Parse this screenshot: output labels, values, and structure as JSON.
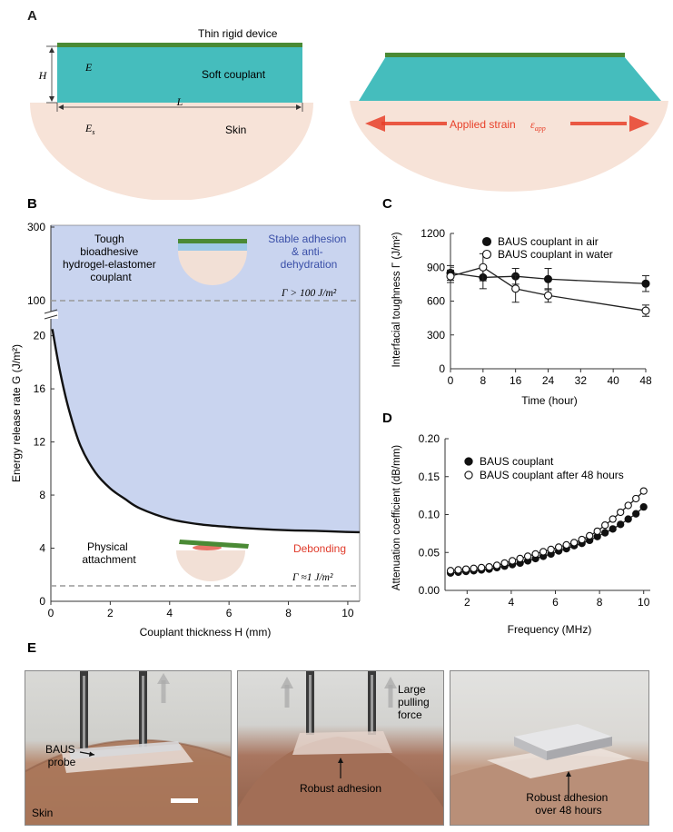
{
  "panel_a": {
    "letter": "A",
    "device_label": "Thin rigid device",
    "couplant_label": "Soft couplant",
    "skin_label": "Skin",
    "h_label": "H",
    "l_label": "L",
    "e_label": "E",
    "es_label": "E",
    "es_sub": "s",
    "strain_label": "Applied strain",
    "strain_symbol": "ε",
    "strain_sub": "app",
    "colors": {
      "device": "#4a8a35",
      "couplant": "#45bdbd",
      "skin": "#f7e3d8",
      "arrow": "#e8402a"
    }
  },
  "panel_b": {
    "letter": "B",
    "ylabel": "Energy release rate G (J/m²)",
    "xlabel": "Couplant thickness H (mm)",
    "text_tough_1": "Tough",
    "text_tough_2": "bioadhesive",
    "text_tough_3": "hydrogel-elastomer",
    "text_tough_4": "couplant",
    "text_stable_1": "Stable adhesion",
    "text_stable_2": "& anti-",
    "text_stable_3": "dehydration",
    "text_gamma_high": "Γ > 100 J/m²",
    "text_gamma_low": "Γ ≈1 J/m²",
    "text_physical_1": "Physical",
    "text_physical_2": "attachment",
    "text_debonding": "Debonding",
    "ytick_break": [
      "300",
      "100"
    ],
    "colors": {
      "region": "#c9d4ef",
      "stable_text": "#3a4fa8",
      "debond_text": "#e03a2a"
    }
  },
  "panel_c": {
    "letter": "C",
    "ylabel": "Interfacial toughness Γ (J/m²)",
    "xlabel": "Time (hour)"
  },
  "panel_d": {
    "letter": "D",
    "ylabel": "Attenuation coefficient (dB/mm)",
    "xlabel": "Frequency (MHz)"
  },
  "panel_e": {
    "letter": "E",
    "p1_probe_1": "BAUS",
    "p1_probe_2": "probe",
    "p1_skin": "Skin",
    "p2_force_1": "Large",
    "p2_force_2": "pulling",
    "p2_force_3": "force",
    "p2_adhesion": "Robust adhesion",
    "p3_adhesion_1": "Robust adhesion",
    "p3_adhesion_2": "over 48 hours"
  },
  "chart_data": [
    {
      "type": "line",
      "panel": "B",
      "xlabel": "Couplant thickness H (mm)",
      "ylabel": "Energy release rate G (J/m²)",
      "xlim": [
        0,
        10.4
      ],
      "ylim": [
        0,
        21
      ],
      "xticks": [
        0,
        2,
        4,
        6,
        8,
        10
      ],
      "yticks": [
        0,
        4,
        8,
        12,
        16,
        20
      ],
      "x": [
        0.05,
        0.3,
        0.6,
        1,
        1.5,
        2,
        2.5,
        3,
        4,
        5,
        6,
        7,
        8,
        9,
        10,
        10.4
      ],
      "y": [
        20.5,
        17.4,
        14.5,
        11.7,
        9.7,
        8.5,
        7.7,
        7.0,
        6.2,
        5.8,
        5.6,
        5.45,
        5.35,
        5.3,
        5.22,
        5.2
      ]
    },
    {
      "type": "line",
      "panel": "C",
      "xlabel": "Time (hour)",
      "ylabel": "Interfacial toughness Γ (J/m²)",
      "xlim": [
        0,
        48
      ],
      "ylim": [
        0,
        1200
      ],
      "xticks": [
        0,
        8,
        16,
        24,
        32,
        40,
        48
      ],
      "yticks": [
        0,
        300,
        600,
        900,
        1200
      ],
      "x": [
        0,
        8,
        16,
        24,
        48
      ],
      "series": [
        {
          "name": "BAUS couplant in air",
          "marker": "filled",
          "values": [
            850,
            810,
            820,
            795,
            755
          ],
          "errors": [
            65,
            100,
            70,
            95,
            70
          ]
        },
        {
          "name": "BAUS couplant in water",
          "marker": "open",
          "values": [
            820,
            900,
            710,
            650,
            515
          ],
          "errors": [
            55,
            120,
            120,
            60,
            50
          ]
        }
      ]
    },
    {
      "type": "line",
      "panel": "D",
      "xlabel": "Frequency (MHz)",
      "ylabel": "Attenuation coefficient (dB/mm)",
      "xlim": [
        1,
        10.3
      ],
      "ylim": [
        0,
        0.2
      ],
      "xticks": [
        2,
        4,
        6,
        8,
        10
      ],
      "yticks": [
        0,
        0.05,
        0.1,
        0.15,
        0.2
      ],
      "x": [
        1.25,
        1.6,
        1.95,
        2.3,
        2.65,
        3.0,
        3.35,
        3.7,
        4.05,
        4.4,
        4.75,
        5.1,
        5.45,
        5.8,
        6.15,
        6.5,
        6.85,
        7.2,
        7.55,
        7.9,
        8.25,
        8.6,
        8.95,
        9.3,
        9.65,
        10.0
      ],
      "series": [
        {
          "name": "BAUS couplant",
          "marker": "filled",
          "values": [
            0.023,
            0.024,
            0.025,
            0.026,
            0.027,
            0.028,
            0.03,
            0.032,
            0.034,
            0.036,
            0.039,
            0.042,
            0.045,
            0.048,
            0.052,
            0.055,
            0.059,
            0.062,
            0.066,
            0.071,
            0.076,
            0.081,
            0.087,
            0.094,
            0.101,
            0.11
          ]
        },
        {
          "name": "BAUS couplant after 48 hours",
          "marker": "open",
          "values": [
            0.026,
            0.027,
            0.028,
            0.029,
            0.03,
            0.031,
            0.033,
            0.036,
            0.039,
            0.042,
            0.045,
            0.048,
            0.051,
            0.054,
            0.057,
            0.06,
            0.063,
            0.067,
            0.072,
            0.078,
            0.086,
            0.094,
            0.103,
            0.112,
            0.121,
            0.131
          ]
        }
      ]
    }
  ]
}
